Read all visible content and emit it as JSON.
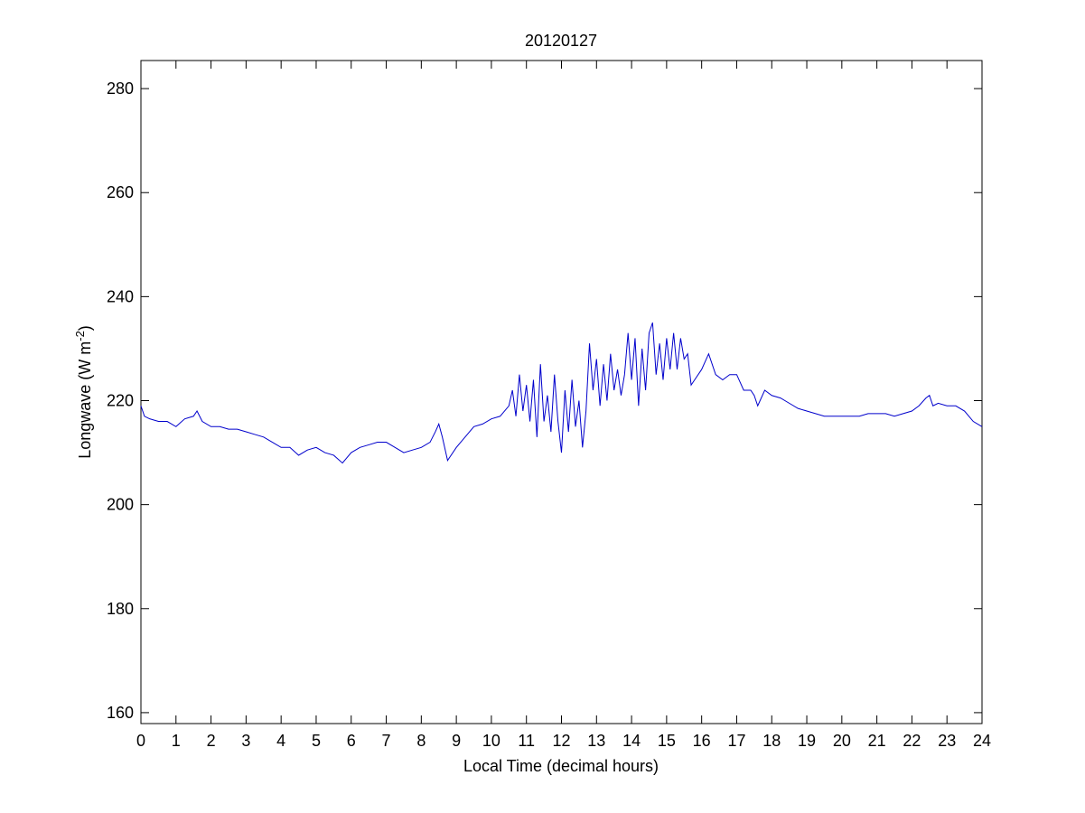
{
  "chart_data": {
    "type": "line",
    "title": "20120127",
    "xlabel": "Local Time (decimal hours)",
    "ylabel": [
      "Longwave (W m",
      "-2",
      ")"
    ],
    "xlim": [
      0,
      24
    ],
    "xticks": [
      0,
      1,
      2,
      3,
      4,
      5,
      6,
      7,
      8,
      9,
      10,
      11,
      12,
      13,
      14,
      15,
      16,
      17,
      18,
      19,
      20,
      21,
      22,
      23,
      24
    ],
    "ylim": [
      157.9,
      285.4
    ],
    "yticks": [
      160,
      180,
      200,
      220,
      240,
      260,
      280
    ],
    "series": [
      {
        "color": "#0000cc",
        "x": [
          0,
          0.1,
          0.25,
          0.5,
          0.75,
          1,
          1.25,
          1.5,
          1.6,
          1.75,
          2,
          2.25,
          2.5,
          2.75,
          3,
          3.25,
          3.5,
          3.75,
          4,
          4.25,
          4.5,
          4.75,
          5,
          5.25,
          5.5,
          5.75,
          6,
          6.25,
          6.5,
          6.75,
          7,
          7.25,
          7.5,
          7.75,
          8,
          8.25,
          8.4,
          8.5,
          8.6,
          8.75,
          9,
          9.25,
          9.5,
          9.75,
          10,
          10.25,
          10.5,
          10.6,
          10.7,
          10.8,
          10.9,
          11,
          11.1,
          11.2,
          11.3,
          11.4,
          11.5,
          11.6,
          11.7,
          11.8,
          11.9,
          12,
          12.1,
          12.2,
          12.3,
          12.4,
          12.5,
          12.6,
          12.7,
          12.8,
          12.9,
          13,
          13.1,
          13.2,
          13.3,
          13.4,
          13.5,
          13.6,
          13.7,
          13.8,
          13.9,
          14,
          14.1,
          14.2,
          14.3,
          14.4,
          14.5,
          14.6,
          14.7,
          14.8,
          14.9,
          15,
          15.1,
          15.2,
          15.3,
          15.4,
          15.5,
          15.6,
          15.7,
          15.8,
          16,
          16.2,
          16.4,
          16.6,
          16.8,
          17,
          17.2,
          17.4,
          17.5,
          17.6,
          17.8,
          18,
          18.25,
          18.5,
          18.75,
          19,
          19.25,
          19.5,
          19.75,
          20,
          20.25,
          20.5,
          20.75,
          21,
          21.25,
          21.5,
          21.75,
          22,
          22.2,
          22.4,
          22.5,
          22.6,
          22.75,
          23,
          23.25,
          23.5,
          23.75,
          24
        ],
        "values": [
          219,
          217,
          216.5,
          216,
          216,
          215,
          216.5,
          217,
          218,
          216,
          215,
          215,
          214.5,
          214.5,
          214,
          213.5,
          213,
          212,
          211,
          211,
          209.5,
          210.5,
          211,
          210,
          209.5,
          208,
          210,
          211,
          211.5,
          212,
          212,
          211,
          210,
          210.5,
          211,
          212,
          214,
          215.5,
          213,
          208.5,
          211,
          213,
          215,
          215.5,
          216.5,
          217,
          219,
          222,
          217,
          225,
          218,
          223,
          216,
          224,
          213,
          227,
          216,
          221,
          214,
          225,
          216,
          210,
          222,
          214,
          224,
          215,
          220,
          211,
          218,
          231,
          222,
          228,
          219,
          227,
          220,
          229,
          222,
          226,
          221,
          225,
          233,
          224,
          232,
          219,
          230,
          222,
          233,
          235,
          225,
          231,
          224,
          232,
          226,
          233,
          226,
          232,
          228,
          229,
          223,
          224,
          226,
          229,
          225,
          224,
          225,
          225,
          222,
          222,
          221,
          219,
          222,
          221,
          220.5,
          219.5,
          218.5,
          218,
          217.5,
          217,
          217,
          217,
          217,
          217,
          217.5,
          217.5,
          217.5,
          217,
          217.5,
          218,
          219,
          220.5,
          221,
          219,
          219.5,
          219,
          219,
          218,
          216,
          215
        ]
      }
    ]
  }
}
